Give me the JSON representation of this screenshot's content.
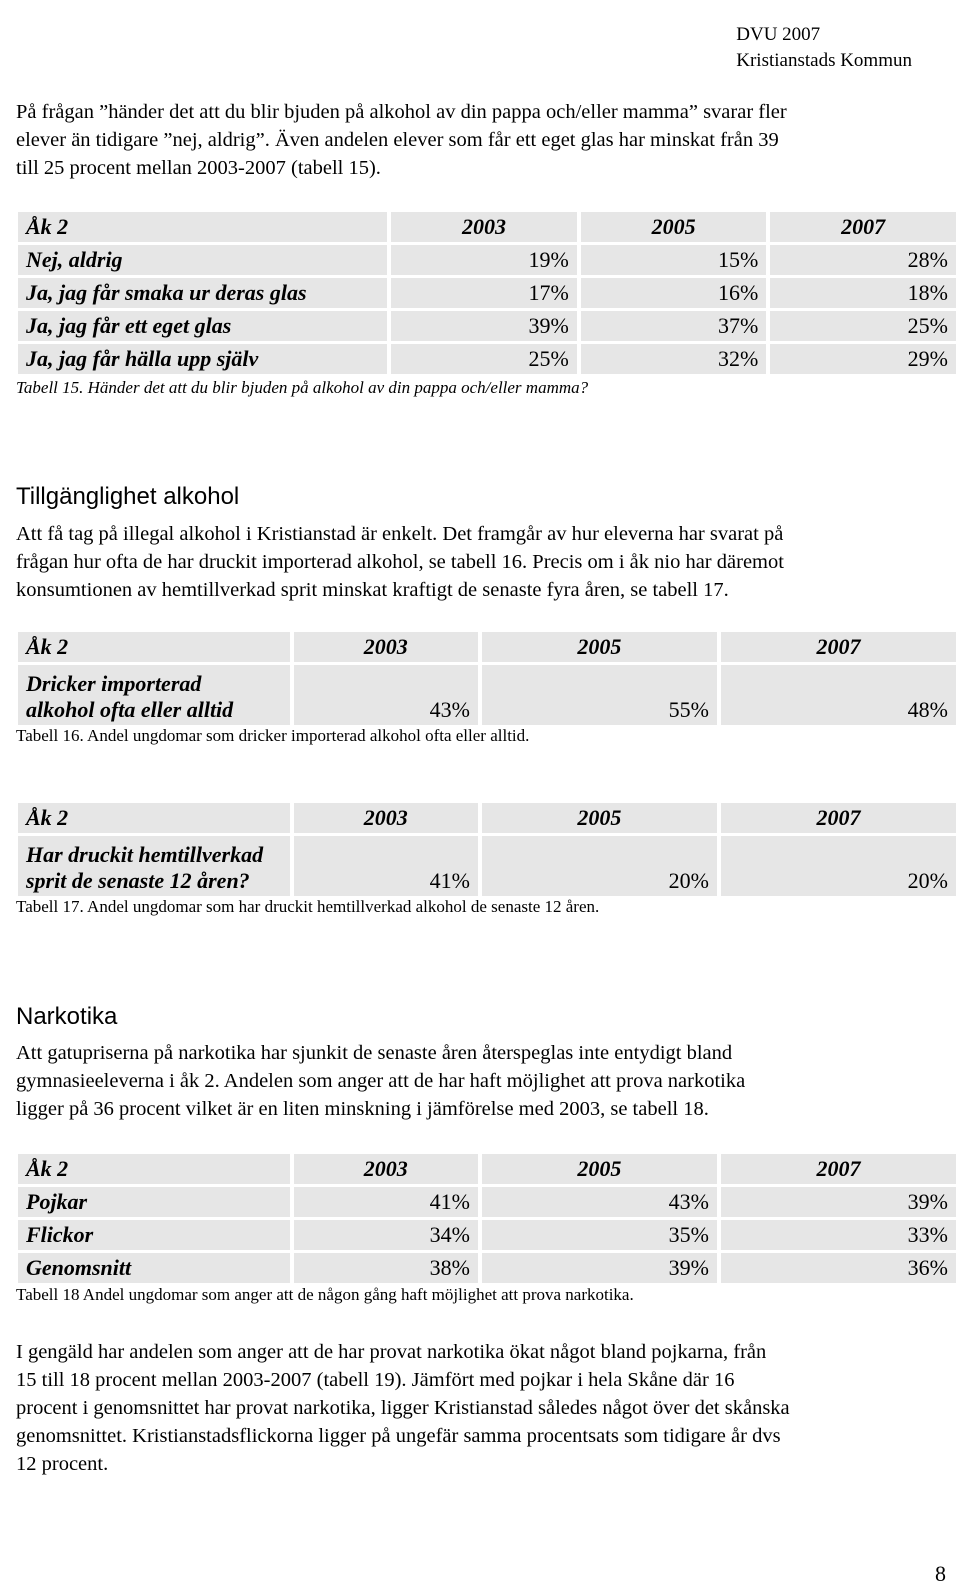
{
  "header": {
    "line1": "DVU 2007",
    "line2": "Kristianstads Kommun"
  },
  "intro": [
    "På frågan ”händer det att du blir bjuden på alkohol av din pappa och/eller mamma” svarar fler",
    "elever än tidigare ”nej, aldrig”. Även andelen elever som får ett eget glas har minskat från 39",
    "till 25 procent mellan 2003-2007 (tabell 15)."
  ],
  "table15": {
    "headers": [
      "Åk 2",
      "2003",
      "2005",
      "2007"
    ],
    "rows": [
      [
        "Nej, aldrig",
        "19%",
        "15%",
        "28%"
      ],
      [
        "Ja, jag får smaka ur deras glas",
        "17%",
        "16%",
        "18%"
      ],
      [
        "Ja, jag får ett eget glas",
        "39%",
        "37%",
        "25%"
      ],
      [
        "Ja, jag får hälla upp själv",
        "25%",
        "32%",
        "29%"
      ]
    ],
    "caption": "Tabell 15. Händer det att du blir bjuden på alkohol av din pappa och/eller mamma?"
  },
  "section1": {
    "heading": "Tillgänglighet alkohol",
    "para": [
      "Att få tag på illegal alkohol i Kristianstad är enkelt. Det framgår av hur eleverna har svarat på",
      "frågan hur ofta de har druckit importerad alkohol, se tabell 16. Precis om i åk nio har däremot",
      "konsumtionen av hemtillverkad sprit minskat kraftigt de senaste fyra åren, se tabell 17."
    ]
  },
  "table16": {
    "headers": [
      "Åk 2",
      "2003",
      "2005",
      "2007"
    ],
    "label_line1": "Dricker importerad",
    "label_line2": "alkohol ofta eller alltid",
    "values": [
      "43%",
      "55%",
      "48%"
    ],
    "caption": "Tabell 16. Andel ungdomar som dricker importerad alkohol ofta eller alltid."
  },
  "table17": {
    "headers": [
      "Åk 2",
      "2003",
      "2005",
      "2007"
    ],
    "label_line1": "Har druckit hemtillverkad",
    "label_line2": "sprit de senaste 12 åren?",
    "values": [
      "41%",
      "20%",
      "20%"
    ],
    "caption": "Tabell 17. Andel ungdomar som har druckit hemtillverkad alkohol de senaste 12 åren."
  },
  "section2": {
    "heading": "Narkotika",
    "para": [
      "Att gatupriserna på narkotika har sjunkit de senaste åren återspeglas inte entydigt bland",
      "gymnasieeleverna i åk 2. Andelen som anger att de har haft möjlighet att prova narkotika",
      "ligger på 36 procent vilket är en liten minskning i jämförelse med 2003, se tabell 18."
    ]
  },
  "table18": {
    "headers": [
      "Åk 2",
      "2003",
      "2005",
      "2007"
    ],
    "rows": [
      [
        "Pojkar",
        "41%",
        "43%",
        "39%"
      ],
      [
        "Flickor",
        "34%",
        "35%",
        "33%"
      ],
      [
        "Genomsnitt",
        "38%",
        "39%",
        "36%"
      ]
    ],
    "caption": "Tabell 18 Andel ungdomar som anger att de någon gång haft möjlighet att prova narkotika."
  },
  "closing": [
    "I gengäld har andelen som anger att de har provat narkotika ökat något bland pojkarna, från",
    "15 till 18 procent mellan 2003-2007 (tabell 19). Jämfört med pojkar i hela Skåne där 16",
    "procent i genomsnittet har provat narkotika, ligger Kristianstad således något över det skånska",
    "genomsnittet. Kristianstadsflickorna ligger på ungefär samma procentsats som tidigare år dvs",
    "12 procent."
  ],
  "page_number": "8"
}
